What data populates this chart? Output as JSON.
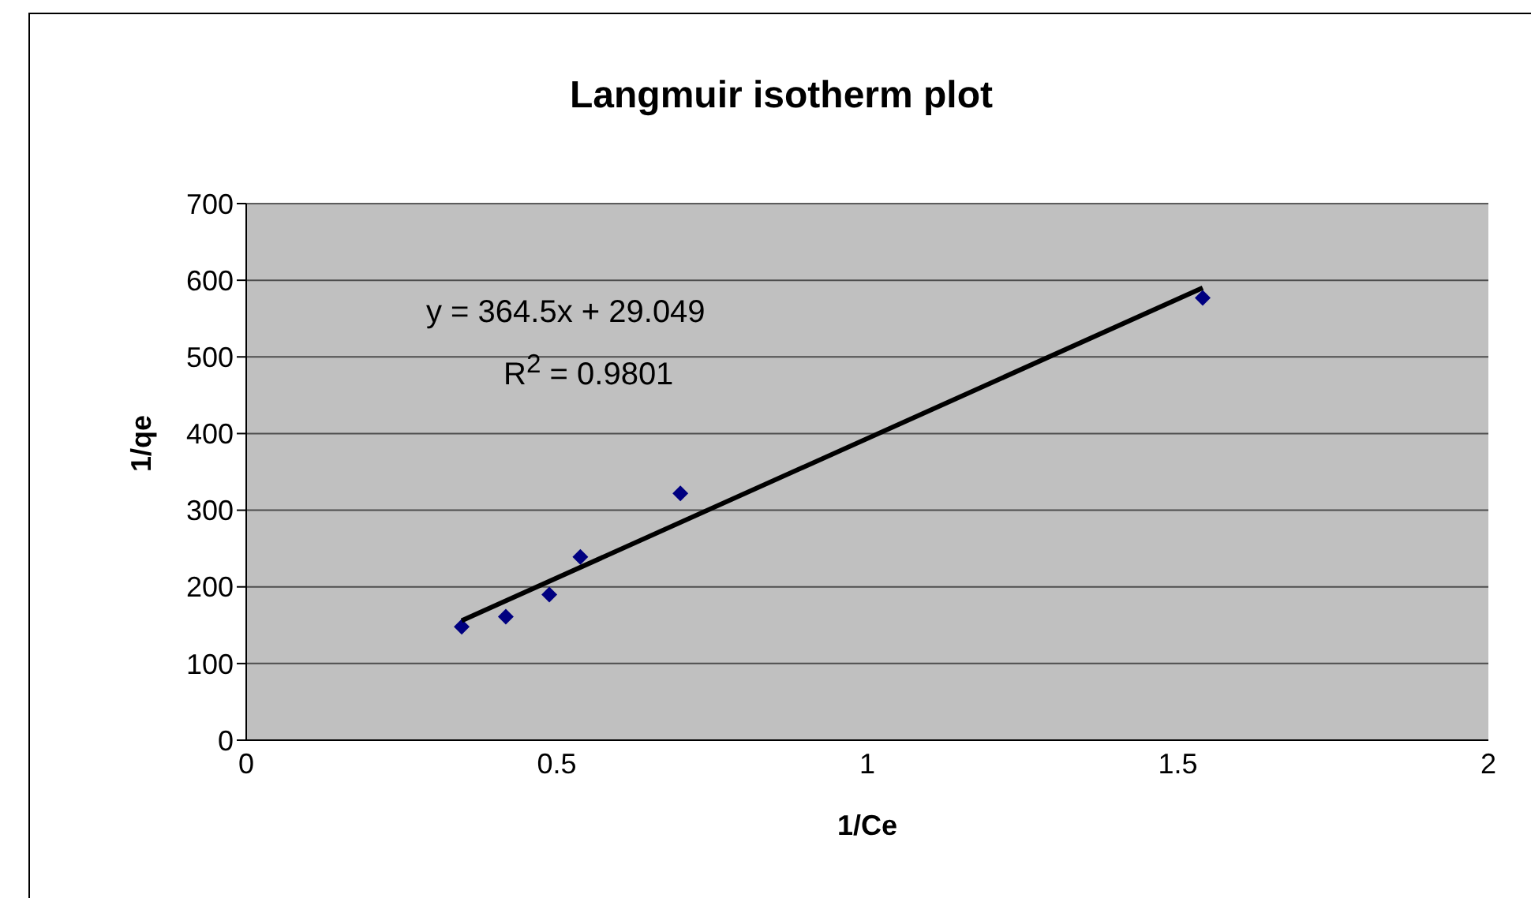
{
  "chart_data": {
    "type": "scatter",
    "title": "Langmuir isotherm plot",
    "xlabel": "1/Ce",
    "ylabel": "1/qe",
    "xlim": [
      0,
      2
    ],
    "xticks": [
      0,
      0.5,
      1,
      1.5,
      2
    ],
    "ylim": [
      0,
      700
    ],
    "yticks": [
      0,
      100,
      200,
      300,
      400,
      500,
      600,
      700
    ],
    "grid": "y",
    "legend": false,
    "marker": "diamond",
    "annotations": [
      "y = 364.5x + 29.049",
      "R$^{2}$ = 0.9801"
    ],
    "series": [
      {
        "color": "#000080",
        "x": [
          0.347,
          0.418,
          0.488,
          0.538,
          0.699,
          1.54
        ],
        "values": [
          148,
          161,
          190,
          239,
          322,
          577
        ]
      },
      {
        "type": "line",
        "color": "#000000",
        "x": [
          0.347,
          1.54
        ],
        "values": [
          156,
          590
        ],
        "marker": "none"
      }
    ]
  }
}
